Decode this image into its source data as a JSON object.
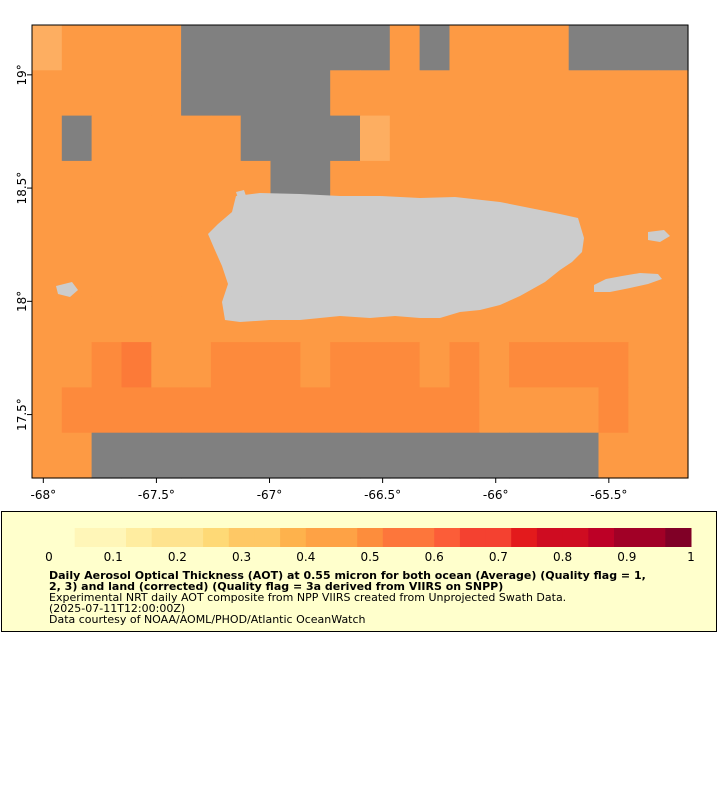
{
  "map": {
    "title": "",
    "x_axis": {
      "ticks": [
        {
          "value": -68,
          "label": "-68°"
        },
        {
          "value": -67.5,
          "label": "-67.5°"
        },
        {
          "value": -67,
          "label": "-67°"
        },
        {
          "value": -66.5,
          "label": "-66.5°"
        },
        {
          "value": -66,
          "label": "-66°"
        },
        {
          "value": -65.5,
          "label": "-65.5°"
        }
      ],
      "range": [
        -68.05,
        -65.15
      ]
    },
    "y_axis": {
      "ticks": [
        {
          "value": 19,
          "label": "19°"
        },
        {
          "value": 18.5,
          "label": "18.5°"
        },
        {
          "value": 18,
          "label": "18°"
        },
        {
          "value": 17.5,
          "label": "17.5°"
        }
      ],
      "range": [
        17.22,
        19.22
      ]
    },
    "colors": {
      "no_data": "#808080",
      "land": "#cccccc",
      "background": "#ffffff"
    }
  },
  "chart_data": {
    "type": "heatmap",
    "variable": "Aerosol Optical Thickness (AOT) at 0.55 micron",
    "grid_columns_lon_start": -68.05,
    "grid_rows_lat_start": 19.22,
    "cell_size_deg": 0.1,
    "codes": {
      "0": "no data (gray)",
      "1": "~0.35",
      "2": "~0.40",
      "3": "~0.45",
      "4": "~0.50",
      "5": "~0.55",
      "6": "~0.60",
      "7": "~0.70",
      "L": "land"
    },
    "rows": [
      "1222200000002022220000",
      "2222200000222222222222",
      "2022222000012222222222",
      "2222222200222222222222",
      "2222222222222222222222",
      "2222222222222222222222",
      "2222222222222222222222",
      "2234223332333232333322",
      "2333333333333332222322",
      "2200000000000000000222"
    ],
    "colorbar": {
      "min": 0,
      "max": 1,
      "ticks": [
        {
          "value": 0,
          "label": "0"
        },
        {
          "value": 0.1,
          "label": "0.1"
        },
        {
          "value": 0.2,
          "label": "0.2"
        },
        {
          "value": 0.3,
          "label": "0.3"
        },
        {
          "value": 0.4,
          "label": "0.4"
        },
        {
          "value": 0.5,
          "label": "0.5"
        },
        {
          "value": 0.6,
          "label": "0.6"
        },
        {
          "value": 0.7,
          "label": "0.7"
        },
        {
          "value": 0.8,
          "label": "0.8"
        },
        {
          "value": 0.9,
          "label": "0.9"
        },
        {
          "value": 1,
          "label": "1"
        }
      ],
      "steps": 25,
      "palette": [
        "#ffffcc",
        "#fff6b8",
        "#ffeda0",
        "#fee38e",
        "#fed976",
        "#fec865",
        "#feb24c",
        "#fea245",
        "#fd8d3c",
        "#fd763b",
        "#fc5d38",
        "#f44130",
        "#e31a1c",
        "#cf0c21",
        "#bd0026",
        "#a10026",
        "#800026"
      ]
    }
  },
  "legend": {
    "title_line1": "Daily Aerosol Optical Thickness (AOT) at 0.55 micron for both ocean (Average) (Quality flag = 1,",
    "title_line2": "2, 3) and land (corrected) (Quality flag = 3a derived from VIIRS on SNPP)",
    "subtitle": "Experimental NRT daily AOT composite from NPP VIIRS created from Unprojected Swath Data.",
    "date": "(2025-07-11T12:00:00Z)",
    "credit": "Data courtesy of NOAA/AOML/PHOD/Atlantic OceanWatch"
  }
}
